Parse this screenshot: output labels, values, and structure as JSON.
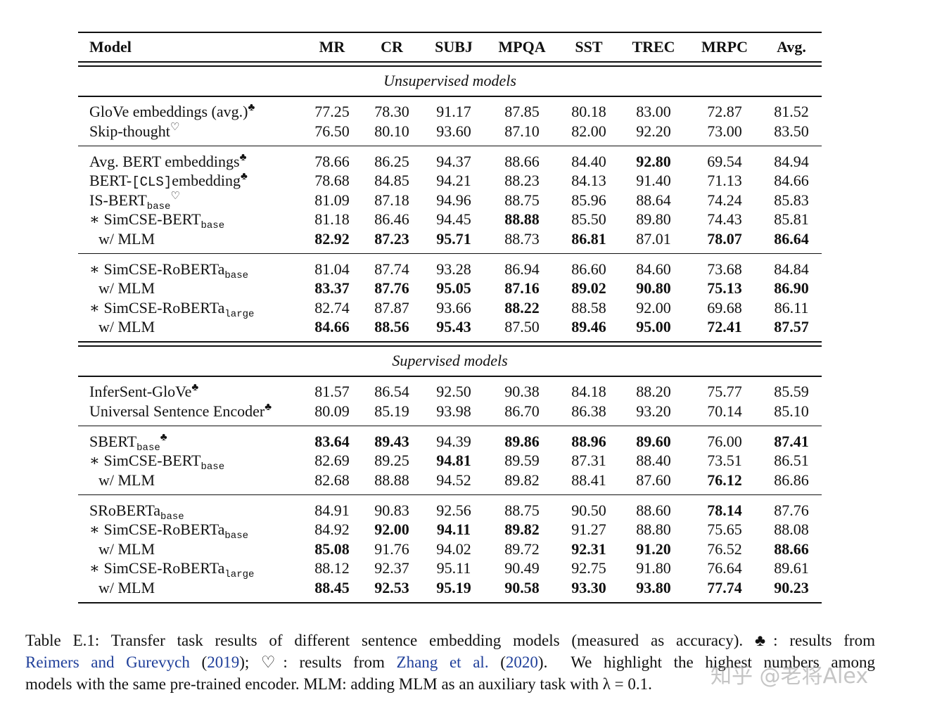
{
  "table": {
    "header": [
      "Model",
      "MR",
      "CR",
      "SUBJ",
      "MPQA",
      "SST",
      "TREC",
      "MRPC",
      "Avg."
    ],
    "sections": [
      {
        "title": "Unsupervised models",
        "groups": [
          [
            {
              "model": [
                {
                  "text": "GloVe embeddings (avg.)"
                },
                {
                  "text": "♣",
                  "style": "sup"
                }
              ],
              "values": [
                "77.25",
                "78.30",
                "91.17",
                "87.85",
                "80.18",
                "83.00",
                "72.87",
                "81.52"
              ],
              "bold": []
            },
            {
              "model": [
                {
                  "text": "Skip-thought"
                },
                {
                  "text": "♡",
                  "style": "sup"
                }
              ],
              "values": [
                "76.50",
                "80.10",
                "93.60",
                "87.10",
                "82.00",
                "92.20",
                "73.00",
                "83.50"
              ],
              "bold": []
            }
          ],
          [
            {
              "model": [
                {
                  "text": "Avg. BERT embeddings"
                },
                {
                  "text": "♣",
                  "style": "sup"
                }
              ],
              "values": [
                "78.66",
                "86.25",
                "94.37",
                "88.66",
                "84.40",
                "92.80",
                "69.54",
                "84.94"
              ],
              "bold": [
                5
              ]
            },
            {
              "model": [
                {
                  "text": "BERT-"
                },
                {
                  "text": "[CLS]",
                  "style": "code"
                },
                {
                  "text": "embedding"
                },
                {
                  "text": "♣",
                  "style": "sup"
                }
              ],
              "values": [
                "78.68",
                "84.85",
                "94.21",
                "88.23",
                "84.13",
                "91.40",
                "71.13",
                "84.66"
              ],
              "bold": []
            },
            {
              "model": [
                {
                  "text": "IS-BERT"
                },
                {
                  "text": "base",
                  "style": "sub"
                },
                {
                  "text": "♡",
                  "style": "sup"
                }
              ],
              "values": [
                "81.09",
                "87.18",
                "94.96",
                "88.75",
                "85.96",
                "88.64",
                "74.24",
                "85.83"
              ],
              "bold": []
            },
            {
              "model": [
                {
                  "text": "∗ SimCSE-BERT"
                },
                {
                  "text": "base",
                  "style": "sub"
                }
              ],
              "values": [
                "81.18",
                "86.46",
                "94.45",
                "88.88",
                "85.50",
                "89.80",
                "74.43",
                "85.81"
              ],
              "bold": [
                3
              ]
            },
            {
              "model": [
                {
                  "text": "w/ MLM"
                }
              ],
              "indent": true,
              "values": [
                "82.92",
                "87.23",
                "95.71",
                "88.73",
                "86.81",
                "87.01",
                "78.07",
                "86.64"
              ],
              "bold": [
                0,
                1,
                2,
                4,
                6,
                7
              ]
            }
          ],
          [
            {
              "model": [
                {
                  "text": "∗ SimCSE-RoBERTa"
                },
                {
                  "text": "base",
                  "style": "sub"
                }
              ],
              "values": [
                "81.04",
                "87.74",
                "93.28",
                "86.94",
                "86.60",
                "84.60",
                "73.68",
                "84.84"
              ],
              "bold": []
            },
            {
              "model": [
                {
                  "text": "w/ MLM"
                }
              ],
              "indent": true,
              "values": [
                "83.37",
                "87.76",
                "95.05",
                "87.16",
                "89.02",
                "90.80",
                "75.13",
                "86.90"
              ],
              "bold": [
                0,
                1,
                2,
                3,
                4,
                5,
                6,
                7
              ]
            },
            {
              "model": [
                {
                  "text": "∗ SimCSE-RoBERTa"
                },
                {
                  "text": "large",
                  "style": "sub"
                }
              ],
              "values": [
                "82.74",
                "87.87",
                "93.66",
                "88.22",
                "88.58",
                "92.00",
                "69.68",
                "86.11"
              ],
              "bold": [
                3
              ]
            },
            {
              "model": [
                {
                  "text": "w/ MLM"
                }
              ],
              "indent": true,
              "values": [
                "84.66",
                "88.56",
                "95.43",
                "87.50",
                "89.46",
                "95.00",
                "72.41",
                "87.57"
              ],
              "bold": [
                0,
                1,
                2,
                4,
                5,
                6,
                7
              ]
            }
          ]
        ]
      },
      {
        "title": "Supervised models",
        "groups": [
          [
            {
              "model": [
                {
                  "text": "InferSent-GloVe"
                },
                {
                  "text": "♣",
                  "style": "sup"
                }
              ],
              "values": [
                "81.57",
                "86.54",
                "92.50",
                "90.38",
                "84.18",
                "88.20",
                "75.77",
                "85.59"
              ],
              "bold": []
            },
            {
              "model": [
                {
                  "text": "Universal Sentence Encoder"
                },
                {
                  "text": "♣",
                  "style": "sup"
                }
              ],
              "values": [
                "80.09",
                "85.19",
                "93.98",
                "86.70",
                "86.38",
                "93.20",
                "70.14",
                "85.10"
              ],
              "bold": []
            }
          ],
          [
            {
              "model": [
                {
                  "text": "SBERT"
                },
                {
                  "text": "base",
                  "style": "sub"
                },
                {
                  "text": "♣",
                  "style": "sup"
                }
              ],
              "values": [
                "83.64",
                "89.43",
                "94.39",
                "89.86",
                "88.96",
                "89.60",
                "76.00",
                "87.41"
              ],
              "bold": [
                0,
                1,
                3,
                4,
                5,
                7
              ]
            },
            {
              "model": [
                {
                  "text": "∗ SimCSE-BERT"
                },
                {
                  "text": "base",
                  "style": "sub"
                }
              ],
              "values": [
                "82.69",
                "89.25",
                "94.81",
                "89.59",
                "87.31",
                "88.40",
                "73.51",
                "86.51"
              ],
              "bold": [
                2
              ]
            },
            {
              "model": [
                {
                  "text": "w/ MLM"
                }
              ],
              "indent": true,
              "values": [
                "82.68",
                "88.88",
                "94.52",
                "89.82",
                "88.41",
                "87.60",
                "76.12",
                "86.86"
              ],
              "bold": [
                6
              ]
            }
          ],
          [
            {
              "model": [
                {
                  "text": "SRoBERTa"
                },
                {
                  "text": "base",
                  "style": "sub"
                }
              ],
              "values": [
                "84.91",
                "90.83",
                "92.56",
                "88.75",
                "90.50",
                "88.60",
                "78.14",
                "87.76"
              ],
              "bold": [
                6
              ]
            },
            {
              "model": [
                {
                  "text": "∗ SimCSE-RoBERTa"
                },
                {
                  "text": "base",
                  "style": "sub"
                }
              ],
              "values": [
                "84.92",
                "92.00",
                "94.11",
                "89.82",
                "91.27",
                "88.80",
                "75.65",
                "88.08"
              ],
              "bold": [
                1,
                2,
                3
              ]
            },
            {
              "model": [
                {
                  "text": "w/ MLM"
                }
              ],
              "indent": true,
              "values": [
                "85.08",
                "91.76",
                "94.02",
                "89.72",
                "92.31",
                "91.20",
                "76.52",
                "88.66"
              ],
              "bold": [
                0,
                4,
                5,
                7
              ]
            },
            {
              "model": [
                {
                  "text": "∗ SimCSE-RoBERTa"
                },
                {
                  "text": "large",
                  "style": "sub"
                }
              ],
              "values": [
                "88.12",
                "92.37",
                "95.11",
                "90.49",
                "92.75",
                "91.80",
                "76.64",
                "89.61"
              ],
              "bold": []
            },
            {
              "model": [
                {
                  "text": "w/ MLM"
                }
              ],
              "indent": true,
              "values": [
                "88.45",
                "92.53",
                "95.19",
                "90.58",
                "93.30",
                "93.80",
                "77.74",
                "90.23"
              ],
              "bold": [
                0,
                1,
                2,
                3,
                4,
                5,
                6,
                7
              ]
            }
          ]
        ]
      }
    ]
  },
  "caption": [
    [
      {
        "text": "Table E.1: Transfer task results of different sentence embedding models (measured as accuracy). ♣: results from"
      }
    ],
    [
      {
        "text": "Reimers and Gurevych",
        "link": true
      },
      {
        "text": " ("
      },
      {
        "text": "2019",
        "link": true
      },
      {
        "text": "); ♡: results from "
      },
      {
        "text": "Zhang et al.",
        "link": true
      },
      {
        "text": " ("
      },
      {
        "text": "2020",
        "link": true
      },
      {
        "text": ").  We highlight the highest numbers among"
      }
    ],
    [
      {
        "text": "models with the same pre-trained encoder. MLM: adding MLM as an auxiliary task with λ = 0.1."
      }
    ]
  ],
  "watermark": "知乎 @老将Alex"
}
